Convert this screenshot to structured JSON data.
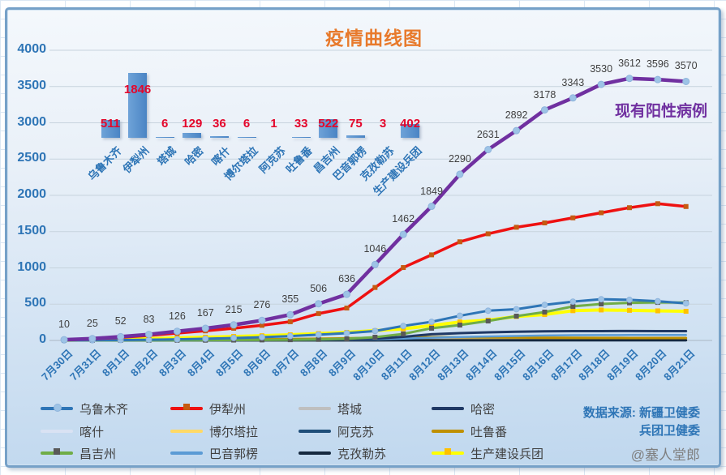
{
  "colors": {
    "title_orange": "#e87a2c",
    "axis_blue": "#2e75b6",
    "data_label_gray": "#3f3f3f",
    "annotation_purple": "#7030a0",
    "bar_fill": "#4a84c4",
    "bar_fill_light": "#6fa3d8",
    "bar_label_red": "#e4062b",
    "gridline": "#c7d3dd",
    "source_blue": "#2e75b6",
    "watermark_gray": "#7f7f7f"
  },
  "header": {
    "title": "疫情曲线图",
    "annotation": "现有阳性病例"
  },
  "source": {
    "line1": "数据来源: 新疆卫健委",
    "line2": "兵团卫健委",
    "watermark": "@塞人堂郎"
  },
  "chart_data": [
    {
      "type": "line",
      "title": "疫情曲线图",
      "xlabel": "",
      "ylabel": "",
      "ylim": [
        0,
        4000
      ],
      "yticks": [
        0,
        500,
        1000,
        1500,
        2000,
        2500,
        3000,
        3500,
        4000
      ],
      "grid": true,
      "legend_position": "bottom",
      "x": [
        "7月30日",
        "7月31日",
        "8月1日",
        "8月2日",
        "8月3日",
        "8月4日",
        "8月5日",
        "8月6日",
        "8月7日",
        "8月8日",
        "8月9日",
        "8月10日",
        "8月11日",
        "8月12日",
        "8月13日",
        "8月14日",
        "8月15日",
        "8月16日",
        "8月17日",
        "8月18日",
        "8月19日",
        "8月20日",
        "8月21日"
      ],
      "total_series": {
        "name": "现有阳性病例",
        "color": "#7030a0",
        "line_width": 4.5,
        "marker": "circle",
        "marker_color": "#9dc3e6",
        "show_labels": true,
        "values": [
          10,
          25,
          52,
          83,
          126,
          167,
          215,
          276,
          355,
          506,
          636,
          1046,
          1462,
          1849,
          2290,
          2631,
          2892,
          3178,
          3343,
          3530,
          3612,
          3596,
          3570
        ]
      },
      "series": [
        {
          "name": "喀什",
          "color": "#d9e2f3",
          "line_width": 3,
          "values": [
            0,
            0,
            0,
            1,
            1,
            2,
            3,
            5,
            8,
            12,
            16,
            22,
            28,
            33,
            36,
            38,
            38,
            37,
            37,
            36,
            36,
            36,
            36
          ]
        },
        {
          "name": "塔城",
          "color": "#bfbfbf",
          "line_width": 3,
          "values": [
            0,
            0,
            1,
            1,
            2,
            3,
            5,
            8,
            12,
            16,
            18,
            20,
            20,
            19,
            17,
            15,
            13,
            11,
            9,
            8,
            7,
            6,
            6
          ]
        },
        {
          "name": "博尔塔拉",
          "color": "#ffd966",
          "line_width": 3,
          "values": [
            0,
            0,
            0,
            0,
            1,
            1,
            2,
            2,
            3,
            3,
            4,
            4,
            5,
            5,
            6,
            6,
            6,
            6,
            6,
            6,
            6,
            6,
            6
          ]
        },
        {
          "name": "阿克苏",
          "color": "#1f4e79",
          "line_width": 2.5,
          "values": [
            0,
            0,
            0,
            0,
            0,
            1,
            1,
            1,
            1,
            2,
            2,
            2,
            2,
            2,
            2,
            2,
            2,
            1,
            1,
            1,
            1,
            1,
            1
          ]
        },
        {
          "name": "克孜勒苏",
          "color": "#16293f",
          "line_width": 3,
          "values": [
            0,
            0,
            0,
            0,
            0,
            0,
            1,
            1,
            1,
            1,
            2,
            2,
            3,
            3,
            3,
            3,
            3,
            3,
            3,
            3,
            3,
            3,
            3
          ]
        },
        {
          "name": "吐鲁番",
          "color": "#bf9000",
          "line_width": 3,
          "values": [
            0,
            1,
            2,
            4,
            6,
            9,
            12,
            15,
            19,
            24,
            30,
            38,
            42,
            45,
            44,
            42,
            40,
            38,
            36,
            35,
            34,
            33,
            33
          ]
        },
        {
          "name": "巴音郭楞",
          "color": "#5b9bd5",
          "line_width": 2.5,
          "values": [
            0,
            0,
            0,
            1,
            1,
            2,
            2,
            3,
            4,
            6,
            8,
            15,
            25,
            38,
            48,
            55,
            62,
            68,
            72,
            74,
            75,
            75,
            75
          ]
        },
        {
          "name": "哈密",
          "color": "#1f3864",
          "line_width": 3,
          "values": [
            0,
            0,
            0,
            1,
            1,
            2,
            3,
            4,
            6,
            8,
            12,
            25,
            50,
            85,
            100,
            112,
            120,
            126,
            128,
            129,
            130,
            129,
            129
          ]
        },
        {
          "name": "生产建设兵团",
          "color": "#ffff00",
          "line_width": 4,
          "marker": "square",
          "marker_color": "#ffc000",
          "values": [
            3,
            8,
            15,
            25,
            35,
            45,
            55,
            65,
            78,
            95,
            112,
            135,
            160,
            205,
            255,
            280,
            330,
            357,
            410,
            420,
            415,
            408,
            402
          ]
        },
        {
          "name": "昌吉州",
          "color": "#70ad47",
          "line_width": 3,
          "marker": "square",
          "marker_color": "#595959",
          "values": [
            0,
            0,
            1,
            1,
            2,
            3,
            5,
            7,
            10,
            14,
            22,
            45,
            90,
            168,
            212,
            268,
            335,
            391,
            469,
            503,
            518,
            524,
            522
          ]
        },
        {
          "name": "乌鲁木齐",
          "color": "#2e75b6",
          "line_width": 3,
          "marker": "circle",
          "marker_color": "#9dc3e6",
          "values": [
            1,
            3,
            6,
            10,
            16,
            24,
            34,
            45,
            60,
            80,
            100,
            130,
            200,
            257,
            340,
            410,
            430,
            490,
            535,
            568,
            560,
            540,
            511
          ]
        },
        {
          "name": "伊犁州",
          "color": "#ee1111",
          "line_width": 3.5,
          "marker": "square",
          "marker_color": "#c55a11",
          "values": [
            8,
            20,
            42,
            68,
            100,
            132,
            168,
            208,
            258,
            370,
            447,
            730,
            1005,
            1180,
            1360,
            1470,
            1560,
            1620,
            1690,
            1760,
            1830,
            1885,
            1846
          ]
        }
      ]
    },
    {
      "type": "bar",
      "title": "",
      "xlabel": "",
      "ylabel": "",
      "categories": [
        "乌鲁木齐",
        "伊犁州",
        "塔城",
        "哈密",
        "喀什",
        "博尔塔拉",
        "阿克苏",
        "吐鲁番",
        "昌吉州",
        "巴音郭楞",
        "克孜勒苏",
        "生产建设兵团"
      ],
      "values": [
        511,
        1846,
        6,
        129,
        36,
        6,
        1,
        33,
        522,
        75,
        3,
        402
      ]
    }
  ],
  "legend": {
    "items": [
      {
        "label": "乌鲁木齐",
        "color": "#2e75b6",
        "marker": "circle",
        "marker_color": "#9dc3e6"
      },
      {
        "label": "伊犁州",
        "color": "#ee1111",
        "marker": "square",
        "marker_color": "#c55a11"
      },
      {
        "label": "塔城",
        "color": "#bfbfbf",
        "marker": "none",
        "marker_color": ""
      },
      {
        "label": "哈密",
        "color": "#1f3864",
        "marker": "none",
        "marker_color": ""
      },
      {
        "label": "喀什",
        "color": "#d9e2f3",
        "marker": "none",
        "marker_color": ""
      },
      {
        "label": "博尔塔拉",
        "color": "#ffd966",
        "marker": "none",
        "marker_color": ""
      },
      {
        "label": "阿克苏",
        "color": "#1f4e79",
        "marker": "none",
        "marker_color": ""
      },
      {
        "label": "吐鲁番",
        "color": "#bf9000",
        "marker": "none",
        "marker_color": ""
      },
      {
        "label": "昌吉州",
        "color": "#70ad47",
        "marker": "square",
        "marker_color": "#595959"
      },
      {
        "label": "巴音郭楞",
        "color": "#5b9bd5",
        "marker": "none",
        "marker_color": ""
      },
      {
        "label": "克孜勒苏",
        "color": "#16293f",
        "marker": "none",
        "marker_color": ""
      },
      {
        "label": "生产建设兵团",
        "color": "#ffff00",
        "marker": "square",
        "marker_color": "#ffc000"
      }
    ]
  }
}
